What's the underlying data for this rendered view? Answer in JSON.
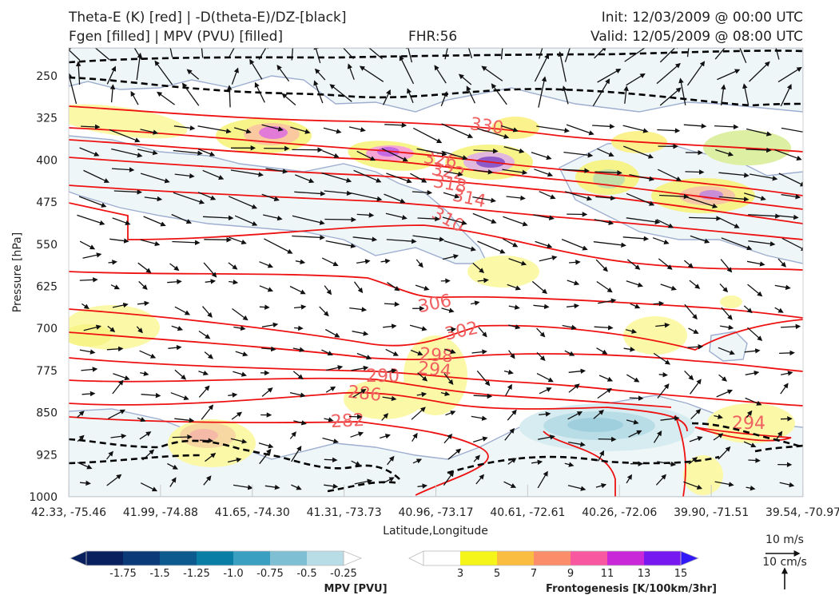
{
  "header": {
    "title_line1": "Theta-E (K) [red] | -D(theta-E)/DZ-[black]",
    "title_line2": "Fgen [filled] | MPV (PVU) [filled]",
    "fhr": "FHR:56",
    "init": "Init: 12/03/2009 @ 00:00 UTC",
    "valid": "Valid: 12/05/2009 @ 08:00 UTC"
  },
  "chart_data": {
    "type": "contour",
    "xlabel": "Latitude,Longitude",
    "ylabel": "Pressure [hPa]",
    "ylim": [
      1000,
      200
    ],
    "y_ticks": [
      "250",
      "325",
      "400",
      "475",
      "550",
      "625",
      "700",
      "775",
      "850",
      "925",
      "1000"
    ],
    "x_ticks": [
      "42.33, -75.46",
      "41.99, -74.88",
      "41.65, -74.30",
      "41.31, -73.73",
      "40.96, -73.17",
      "40.61, -72.61",
      "40.26, -72.06",
      "39.90, -71.51",
      "39.54, -70.97"
    ],
    "theta_e_contour_labels": [
      "330",
      "326",
      "322",
      "318",
      "314",
      "310",
      "306",
      "302",
      "298",
      "294",
      "290",
      "286",
      "282",
      "294"
    ],
    "theta_e_color": "#ee1111",
    "theta_e_label_color": "#f06060",
    "dthetae_dz_color": "#000000",
    "mpv_colorbar": {
      "label": "MPV [PVU]",
      "ticks": [
        "-1.75",
        "-1.5",
        "-1.25",
        "-1.0",
        "-0.75",
        "-0.5",
        "-0.25"
      ],
      "colors": [
        "#08205e",
        "#0a3a78",
        "#0c5a8e",
        "#0a7ea4",
        "#3a9fc1",
        "#7fbfd4",
        "#b9dde7",
        "#ffffff"
      ]
    },
    "fgen_colorbar": {
      "label": "Frontogenesis [K/100km/3hr]",
      "ticks": [
        "3",
        "5",
        "7",
        "9",
        "11",
        "13",
        "15"
      ],
      "colors": [
        "#ffffff",
        "#f5f51a",
        "#fbbd40",
        "#fb8d6a",
        "#f858a0",
        "#c828d8",
        "#7818f0",
        "#3018f8"
      ]
    },
    "vector_keys": [
      "10 m/s",
      "10 cm/s"
    ]
  }
}
